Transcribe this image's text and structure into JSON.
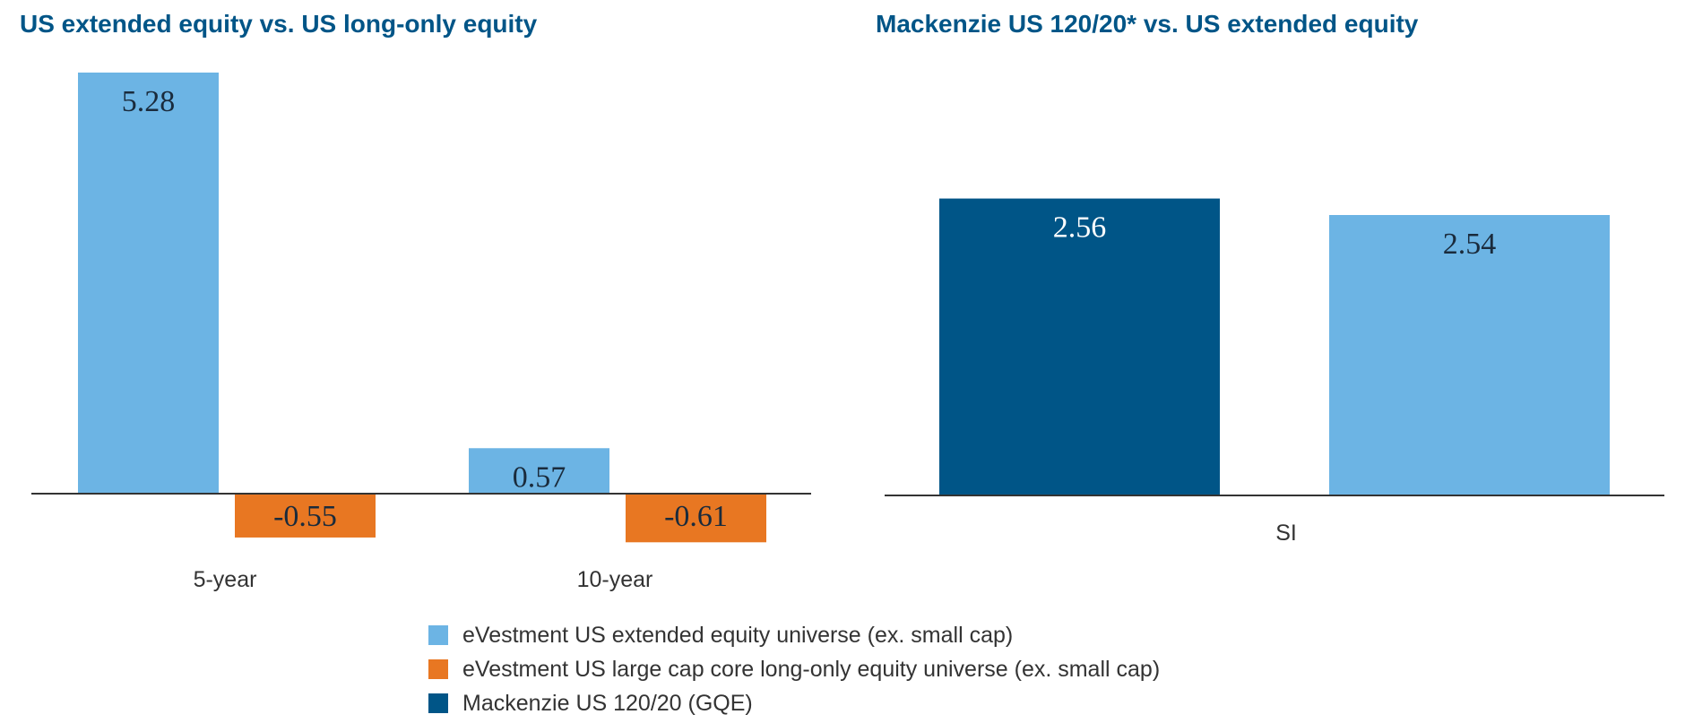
{
  "colors": {
    "light_blue": "#6CB4E4",
    "orange": "#E87722",
    "dark_blue": "#005587",
    "title": "#005587",
    "axis": "#333333",
    "label_dark": "#1A2B3C",
    "label_light": "#ffffff"
  },
  "chart_data": [
    {
      "type": "bar",
      "title": "US extended equity vs. US long-only equity",
      "categories": [
        "5-year",
        "10-year"
      ],
      "series": [
        {
          "name": "eVestment US extended equity universe (ex. small cap)",
          "values": [
            5.28,
            0.57
          ],
          "color": "#6CB4E4"
        },
        {
          "name": "eVestment US large cap core long-only equity universe (ex. small cap)",
          "values": [
            -0.55,
            -0.61
          ],
          "color": "#E87722"
        }
      ],
      "data_labels": [
        [
          "5.28",
          "0.57"
        ],
        [
          "-0.55",
          "-0.61"
        ]
      ],
      "ylim": [
        -0.61,
        5.28
      ],
      "grid": false
    },
    {
      "type": "bar",
      "title": "Mackenzie US 120/20* vs. US extended equity",
      "categories": [
        "SI"
      ],
      "series": [
        {
          "name": "Mackenzie US 120/20 (GQE)",
          "values": [
            2.56
          ],
          "color": "#005587"
        },
        {
          "name": "eVestment US extended equity universe (ex. small cap)",
          "values": [
            2.54
          ],
          "color": "#6CB4E4"
        }
      ],
      "data_labels": [
        [
          "2.56"
        ],
        [
          "2.54"
        ]
      ],
      "ylim": [
        2.2,
        2.57
      ],
      "grid": false
    }
  ],
  "legend": [
    {
      "label": "eVestment US extended equity universe (ex. small cap)",
      "color": "#6CB4E4"
    },
    {
      "label": "eVestment US large cap core long-only equity universe (ex. small cap)",
      "color": "#E87722"
    },
    {
      "label": "Mackenzie US 120/20 (GQE)",
      "color": "#005587"
    }
  ]
}
